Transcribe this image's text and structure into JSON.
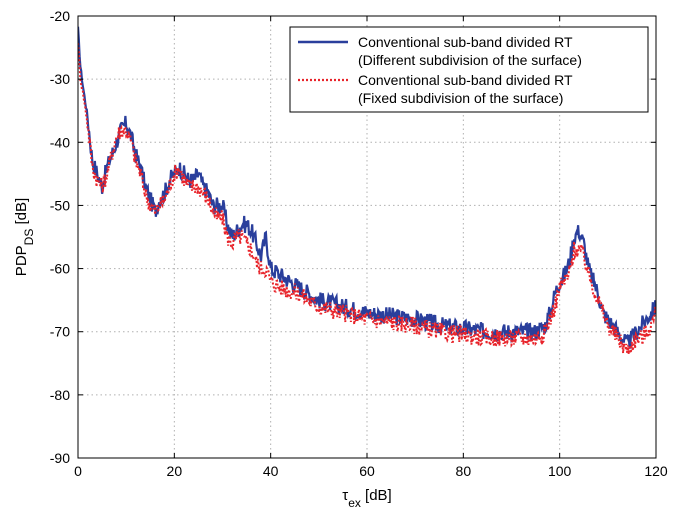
{
  "chart_data": {
    "type": "line",
    "xlabel": {
      "main": "τ",
      "sub": "ex",
      "unit": " [dB]"
    },
    "ylabel": {
      "main": "PDP",
      "sub": "DS",
      "unit": " [dB]"
    },
    "xlim": [
      0,
      120
    ],
    "ylim": [
      -90,
      -20
    ],
    "xticks": [
      "0",
      "20",
      "40",
      "60",
      "80",
      "100",
      "120"
    ],
    "yticks": [
      "-90",
      "-80",
      "-70",
      "-60",
      "-50",
      "-40",
      "-30",
      "-20"
    ],
    "grid": true,
    "legend_position": "top-right",
    "series": [
      {
        "name_lines": [
          "Conventional sub-band divided RT",
          "(Different subdivision of the surface)"
        ],
        "color": "#2a3f9c",
        "style": "solid",
        "x": [
          0,
          0.5,
          1,
          2,
          3,
          4,
          5,
          6,
          7,
          8,
          9,
          10,
          11,
          12,
          13,
          14,
          15,
          16,
          17,
          18,
          19,
          20,
          21,
          22,
          23,
          24,
          25,
          26,
          27,
          28,
          29,
          30,
          31,
          32,
          33,
          34,
          35,
          36,
          37,
          38,
          39,
          40,
          42,
          44,
          46,
          48,
          50,
          55,
          60,
          65,
          70,
          75,
          80,
          85,
          90,
          95,
          97,
          98,
          99,
          100,
          101,
          102,
          103,
          104,
          105,
          106,
          107,
          108,
          109,
          110,
          111,
          112,
          113,
          114,
          115,
          116,
          117,
          118,
          119,
          120
        ],
        "y": [
          -22,
          -28,
          -31,
          -36,
          -43,
          -45,
          -47,
          -44,
          -42,
          -40,
          -38,
          -37,
          -39,
          -42,
          -44,
          -47,
          -49,
          -51,
          -49,
          -48,
          -46,
          -45,
          -44,
          -45,
          -46,
          -46,
          -45,
          -47,
          -48,
          -50,
          -50,
          -50,
          -53,
          -55,
          -54,
          -53,
          -53,
          -54,
          -56,
          -58,
          -55,
          -60,
          -61,
          -62,
          -63,
          -64,
          -65,
          -66,
          -67,
          -67.5,
          -68,
          -69,
          -69.5,
          -70,
          -70,
          -70,
          -69,
          -67,
          -64,
          -62,
          -61,
          -59,
          -55,
          -54,
          -56,
          -60,
          -62,
          -64,
          -67,
          -68,
          -69,
          -70,
          -71,
          -72,
          -71,
          -70,
          -69,
          -68,
          -67,
          -66
        ]
      },
      {
        "name_lines": [
          "Conventional sub-band divided RT",
          "(Fixed subdivision of the surface)"
        ],
        "color": "#e8232a",
        "style": "dotted",
        "x": [
          0,
          0.5,
          1,
          2,
          3,
          4,
          5,
          6,
          7,
          8,
          9,
          10,
          11,
          12,
          13,
          14,
          15,
          16,
          17,
          18,
          19,
          20,
          21,
          22,
          23,
          24,
          25,
          26,
          27,
          28,
          29,
          30,
          31,
          32,
          33,
          34,
          35,
          36,
          37,
          38,
          39,
          40,
          42,
          44,
          46,
          48,
          50,
          55,
          60,
          65,
          70,
          75,
          80,
          85,
          90,
          95,
          97,
          98,
          99,
          100,
          101,
          102,
          103,
          104,
          105,
          106,
          107,
          108,
          109,
          110,
          111,
          112,
          113,
          114,
          115,
          116,
          117,
          118,
          119,
          120
        ],
        "y": [
          -24,
          -30,
          -32,
          -37,
          -44,
          -46,
          -47,
          -45,
          -42,
          -39,
          -38,
          -38,
          -40,
          -43,
          -45,
          -48,
          -50,
          -51,
          -50,
          -49,
          -47,
          -45,
          -44,
          -46,
          -47,
          -47,
          -47,
          -48,
          -49,
          -51,
          -52,
          -52,
          -55,
          -56,
          -55,
          -55,
          -56,
          -57,
          -59,
          -60,
          -60,
          -62,
          -63,
          -63.5,
          -64,
          -65,
          -66,
          -67,
          -68,
          -68.5,
          -69,
          -70,
          -70.5,
          -71,
          -71,
          -71,
          -70,
          -68,
          -66,
          -63,
          -62,
          -61,
          -57,
          -57,
          -58,
          -61,
          -63,
          -65,
          -67,
          -69,
          -70,
          -71,
          -72,
          -73,
          -72,
          -71,
          -71,
          -70,
          -69,
          -67
        ]
      }
    ]
  }
}
